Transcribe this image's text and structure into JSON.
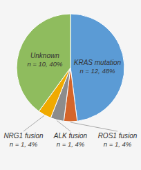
{
  "chart_data": {
    "type": "pie",
    "categories": [
      "KRAS mutation",
      "ROS1 fusion",
      "ALK fusion",
      "NRG1 fusion",
      "Unknown"
    ],
    "values": [
      12,
      1,
      1,
      1,
      10
    ],
    "value_labels": [
      "n = 12, 48%",
      "n = 1, 4%",
      "n = 1, 4%",
      "n = 1, 4%",
      "n = 10, 40%"
    ],
    "colors": [
      "#5b9bd5",
      "#d4652a",
      "#8c8c8c",
      "#f0aa00",
      "#8fbc5e"
    ],
    "data_labels": true
  }
}
